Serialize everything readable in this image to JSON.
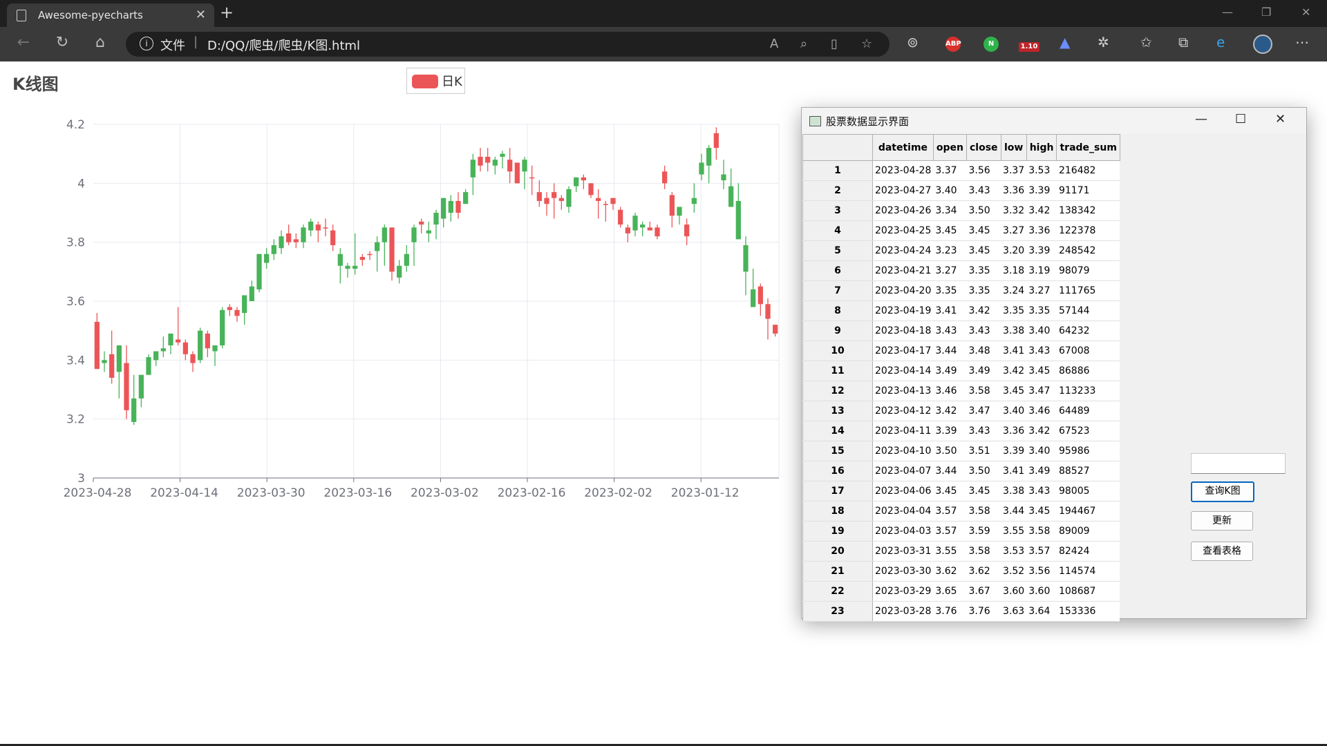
{
  "browser": {
    "tab_title": "Awesome-pyecharts",
    "tab_close": "✕",
    "new_tab": "+",
    "protocol_label": "文件",
    "url": "D:/QQ/爬虫/爬虫/K图.html",
    "ext_abp": "ABP",
    "ext_n": "N",
    "ext_badge": "1.10",
    "win_min": "—",
    "win_max": "❐",
    "win_close": "✕"
  },
  "page": {
    "title": "K线图",
    "legend": "日K",
    "colors": {
      "up": "#ec5557",
      "down": "#48b359"
    }
  },
  "chart_data": {
    "type": "candlestick",
    "title": "K线图",
    "legend": [
      "日K"
    ],
    "y_ticks": [
      "4.2",
      "4",
      "3.8",
      "3.6",
      "3.4",
      "3.2",
      "3"
    ],
    "ylim": [
      3,
      4.2
    ],
    "x_ticks": [
      "2023-04-28",
      "2023-04-14",
      "2023-03-30",
      "2023-03-16",
      "2023-03-02",
      "2023-02-16",
      "2023-02-02",
      "2023-01-12"
    ],
    "ohlc": [
      [
        3.37,
        3.53,
        3.37,
        3.56
      ],
      [
        3.4,
        3.39,
        3.36,
        3.43
      ],
      [
        3.34,
        3.42,
        3.32,
        3.5
      ],
      [
        3.45,
        3.36,
        3.27,
        3.45
      ],
      [
        3.23,
        3.39,
        3.2,
        3.45
      ],
      [
        3.27,
        3.19,
        3.18,
        3.35
      ],
      [
        3.35,
        3.27,
        3.24,
        3.35
      ],
      [
        3.41,
        3.35,
        3.35,
        3.42
      ],
      [
        3.43,
        3.4,
        3.38,
        3.43
      ],
      [
        3.44,
        3.43,
        3.41,
        3.48
      ],
      [
        3.49,
        3.45,
        3.42,
        3.49
      ],
      [
        3.46,
        3.47,
        3.45,
        3.58
      ],
      [
        3.42,
        3.46,
        3.4,
        3.47
      ],
      [
        3.39,
        3.42,
        3.36,
        3.43
      ],
      [
        3.5,
        3.4,
        3.39,
        3.51
      ],
      [
        3.44,
        3.49,
        3.41,
        3.5
      ],
      [
        3.45,
        3.43,
        3.38,
        3.45
      ],
      [
        3.57,
        3.45,
        3.44,
        3.58
      ],
      [
        3.57,
        3.58,
        3.55,
        3.59
      ],
      [
        3.55,
        3.57,
        3.53,
        3.58
      ],
      [
        3.62,
        3.56,
        3.52,
        3.62
      ],
      [
        3.65,
        3.6,
        3.6,
        3.67
      ],
      [
        3.76,
        3.64,
        3.63,
        3.76
      ],
      [
        3.76,
        3.73,
        3.71,
        3.78
      ],
      [
        3.79,
        3.76,
        3.74,
        3.81
      ],
      [
        3.82,
        3.78,
        3.76,
        3.84
      ],
      [
        3.8,
        3.83,
        3.79,
        3.86
      ],
      [
        3.8,
        3.81,
        3.78,
        3.83
      ],
      [
        3.85,
        3.8,
        3.78,
        3.86
      ],
      [
        3.87,
        3.84,
        3.82,
        3.88
      ],
      [
        3.84,
        3.86,
        3.8,
        3.87
      ],
      [
        3.85,
        3.85,
        3.82,
        3.88
      ],
      [
        3.79,
        3.84,
        3.77,
        3.86
      ],
      [
        3.76,
        3.72,
        3.66,
        3.78
      ],
      [
        3.72,
        3.71,
        3.68,
        3.73
      ],
      [
        3.72,
        3.71,
        3.69,
        3.83
      ],
      [
        3.74,
        3.75,
        3.72,
        3.76
      ],
      [
        3.76,
        3.76,
        3.74,
        3.77
      ],
      [
        3.8,
        3.77,
        3.7,
        3.82
      ],
      [
        3.85,
        3.8,
        3.72,
        3.86
      ],
      [
        3.7,
        3.85,
        3.67,
        3.85
      ],
      [
        3.72,
        3.68,
        3.66,
        3.74
      ],
      [
        3.76,
        3.72,
        3.7,
        3.79
      ],
      [
        3.85,
        3.8,
        3.72,
        3.86
      ],
      [
        3.86,
        3.87,
        3.83,
        3.88
      ],
      [
        3.84,
        3.83,
        3.8,
        3.87
      ],
      [
        3.9,
        3.86,
        3.81,
        3.91
      ],
      [
        3.95,
        3.88,
        3.85,
        3.95
      ],
      [
        3.94,
        3.9,
        3.87,
        3.96
      ],
      [
        3.9,
        3.94,
        3.88,
        3.97
      ],
      [
        3.97,
        3.93,
        3.93,
        3.98
      ],
      [
        4.08,
        4.02,
        3.96,
        4.1
      ],
      [
        4.06,
        4.09,
        4.04,
        4.12
      ],
      [
        4.07,
        4.09,
        4.04,
        4.12
      ],
      [
        4.08,
        4.06,
        4.03,
        4.09
      ],
      [
        4.1,
        4.09,
        4.05,
        4.11
      ],
      [
        4.04,
        4.08,
        4.0,
        4.12
      ],
      [
        4.0,
        4.07,
        4.0,
        4.07
      ],
      [
        4.08,
        4.04,
        3.98,
        4.09
      ],
      [
        4.02,
        4.02,
        3.96,
        4.06
      ],
      [
        3.94,
        3.97,
        3.92,
        4.01
      ],
      [
        3.93,
        3.95,
        3.89,
        3.97
      ],
      [
        3.95,
        3.97,
        3.88,
        4.0
      ],
      [
        3.94,
        3.95,
        3.91,
        3.96
      ],
      [
        3.98,
        3.92,
        3.9,
        3.99
      ],
      [
        4.02,
        3.99,
        3.97,
        4.02
      ],
      [
        4.01,
        4.02,
        3.98,
        4.03
      ],
      [
        3.96,
        4.0,
        3.95,
        4.0
      ],
      [
        3.94,
        3.95,
        3.88,
        3.98
      ],
      [
        3.93,
        3.93,
        3.87,
        3.94
      ],
      [
        3.93,
        3.95,
        3.91,
        3.95
      ],
      [
        3.86,
        3.91,
        3.85,
        3.92
      ],
      [
        3.83,
        3.85,
        3.8,
        3.86
      ],
      [
        3.89,
        3.84,
        3.82,
        3.9
      ],
      [
        3.86,
        3.85,
        3.82,
        3.87
      ],
      [
        3.84,
        3.85,
        3.84,
        3.87
      ],
      [
        3.82,
        3.85,
        3.81,
        3.86
      ],
      [
        4.0,
        4.04,
        3.98,
        4.06
      ],
      [
        3.89,
        3.96,
        3.85,
        3.97
      ],
      [
        3.92,
        3.89,
        3.86,
        3.92
      ],
      [
        3.82,
        3.86,
        3.79,
        3.88
      ],
      [
        3.95,
        3.93,
        3.9,
        4.0
      ],
      [
        4.07,
        4.03,
        4.01,
        4.1
      ],
      [
        4.12,
        4.06,
        4.0,
        4.13
      ],
      [
        4.12,
        4.17,
        4.08,
        4.19
      ],
      [
        4.03,
        4.01,
        3.98,
        4.08
      ],
      [
        3.99,
        3.92,
        3.92,
        4.05
      ],
      [
        3.94,
        3.81,
        3.81,
        4.0
      ],
      [
        3.79,
        3.7,
        3.62,
        3.82
      ],
      [
        3.64,
        3.58,
        3.58,
        3.71
      ],
      [
        3.59,
        3.65,
        3.55,
        3.66
      ],
      [
        3.54,
        3.59,
        3.47,
        3.61
      ],
      [
        3.49,
        3.52,
        3.48,
        3.52
      ]
    ]
  },
  "qt": {
    "title": "股票数据显示界面",
    "ctl_min": "—",
    "ctl_max": "☐",
    "ctl_close": "✕",
    "columns": [
      "datetime",
      "open",
      "close",
      "low",
      "high",
      "trade_sum"
    ],
    "rows": [
      {
        "n": "1",
        "cells": [
          "2023-04-28",
          "3.37",
          "3.56",
          "3.37",
          "3.53",
          "216482"
        ]
      },
      {
        "n": "2",
        "cells": [
          "2023-04-27",
          "3.40",
          "3.43",
          "3.36",
          "3.39",
          "91171"
        ]
      },
      {
        "n": "3",
        "cells": [
          "2023-04-26",
          "3.34",
          "3.50",
          "3.32",
          "3.42",
          "138342"
        ]
      },
      {
        "n": "4",
        "cells": [
          "2023-04-25",
          "3.45",
          "3.45",
          "3.27",
          "3.36",
          "122378"
        ]
      },
      {
        "n": "5",
        "cells": [
          "2023-04-24",
          "3.23",
          "3.45",
          "3.20",
          "3.39",
          "248542"
        ]
      },
      {
        "n": "6",
        "cells": [
          "2023-04-21",
          "3.27",
          "3.35",
          "3.18",
          "3.19",
          "98079"
        ]
      },
      {
        "n": "7",
        "cells": [
          "2023-04-20",
          "3.35",
          "3.35",
          "3.24",
          "3.27",
          "111765"
        ]
      },
      {
        "n": "8",
        "cells": [
          "2023-04-19",
          "3.41",
          "3.42",
          "3.35",
          "3.35",
          "57144"
        ]
      },
      {
        "n": "9",
        "cells": [
          "2023-04-18",
          "3.43",
          "3.43",
          "3.38",
          "3.40",
          "64232"
        ]
      },
      {
        "n": "10",
        "cells": [
          "2023-04-17",
          "3.44",
          "3.48",
          "3.41",
          "3.43",
          "67008"
        ]
      },
      {
        "n": "11",
        "cells": [
          "2023-04-14",
          "3.49",
          "3.49",
          "3.42",
          "3.45",
          "86886"
        ]
      },
      {
        "n": "12",
        "cells": [
          "2023-04-13",
          "3.46",
          "3.58",
          "3.45",
          "3.47",
          "113233"
        ]
      },
      {
        "n": "13",
        "cells": [
          "2023-04-12",
          "3.42",
          "3.47",
          "3.40",
          "3.46",
          "64489"
        ]
      },
      {
        "n": "14",
        "cells": [
          "2023-04-11",
          "3.39",
          "3.43",
          "3.36",
          "3.42",
          "67523"
        ]
      },
      {
        "n": "15",
        "cells": [
          "2023-04-10",
          "3.50",
          "3.51",
          "3.39",
          "3.40",
          "95986"
        ]
      },
      {
        "n": "16",
        "cells": [
          "2023-04-07",
          "3.44",
          "3.50",
          "3.41",
          "3.49",
          "88527"
        ]
      },
      {
        "n": "17",
        "cells": [
          "2023-04-06",
          "3.45",
          "3.45",
          "3.38",
          "3.43",
          "98005"
        ]
      },
      {
        "n": "18",
        "cells": [
          "2023-04-04",
          "3.57",
          "3.58",
          "3.44",
          "3.45",
          "194467"
        ]
      },
      {
        "n": "19",
        "cells": [
          "2023-04-03",
          "3.57",
          "3.59",
          "3.55",
          "3.58",
          "89009"
        ]
      },
      {
        "n": "20",
        "cells": [
          "2023-03-31",
          "3.55",
          "3.58",
          "3.53",
          "3.57",
          "82424"
        ]
      },
      {
        "n": "21",
        "cells": [
          "2023-03-30",
          "3.62",
          "3.62",
          "3.52",
          "3.56",
          "114574"
        ]
      },
      {
        "n": "22",
        "cells": [
          "2023-03-29",
          "3.65",
          "3.67",
          "3.60",
          "3.60",
          "108687"
        ]
      },
      {
        "n": "23",
        "cells": [
          "2023-03-28",
          "3.76",
          "3.76",
          "3.63",
          "3.64",
          "153336"
        ]
      }
    ],
    "input_value": "",
    "btn_kchart": "查询K图",
    "btn_update": "更新",
    "btn_table": "查看表格"
  }
}
